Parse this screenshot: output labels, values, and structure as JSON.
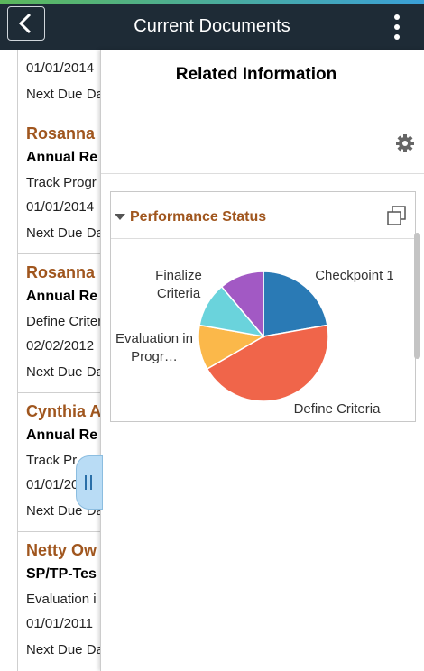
{
  "header": {
    "title": "Current Documents"
  },
  "list": {
    "items": [
      {
        "date": "01/01/2014",
        "due": "Next Due Da"
      },
      {
        "name": "Rosanna",
        "title": "Annual Re",
        "step": "Track Progr",
        "date": "01/01/2014",
        "due": "Next Due Da"
      },
      {
        "name": "Rosanna",
        "title": "Annual Re",
        "step": "Define Criter",
        "date": "02/02/2012",
        "due": "Next Due Da"
      },
      {
        "name": "Cynthia A",
        "title": "Annual Re",
        "step": "Track Pr",
        "date": "01/01/20",
        "due": "Next Due Da"
      },
      {
        "name": "Netty Ow",
        "title": "SP/TP-Tes",
        "step": "Evaluation i",
        "date": "01/01/2011",
        "due": "Next Due Da"
      }
    ]
  },
  "panel": {
    "title": "Related Information",
    "card": {
      "title": "Performance Status",
      "chart_data": {
        "type": "pie",
        "categories": [
          "Checkpoint 1",
          "Define Criteria",
          "Evaluation in Progr…",
          "Finalize Criteria",
          null
        ],
        "values": [
          2,
          4,
          1,
          1,
          1
        ],
        "colors": [
          "#2a7ab5",
          "#f0654a",
          "#fbb84a",
          "#6ad3dc",
          "#a259c4"
        ]
      }
    }
  }
}
